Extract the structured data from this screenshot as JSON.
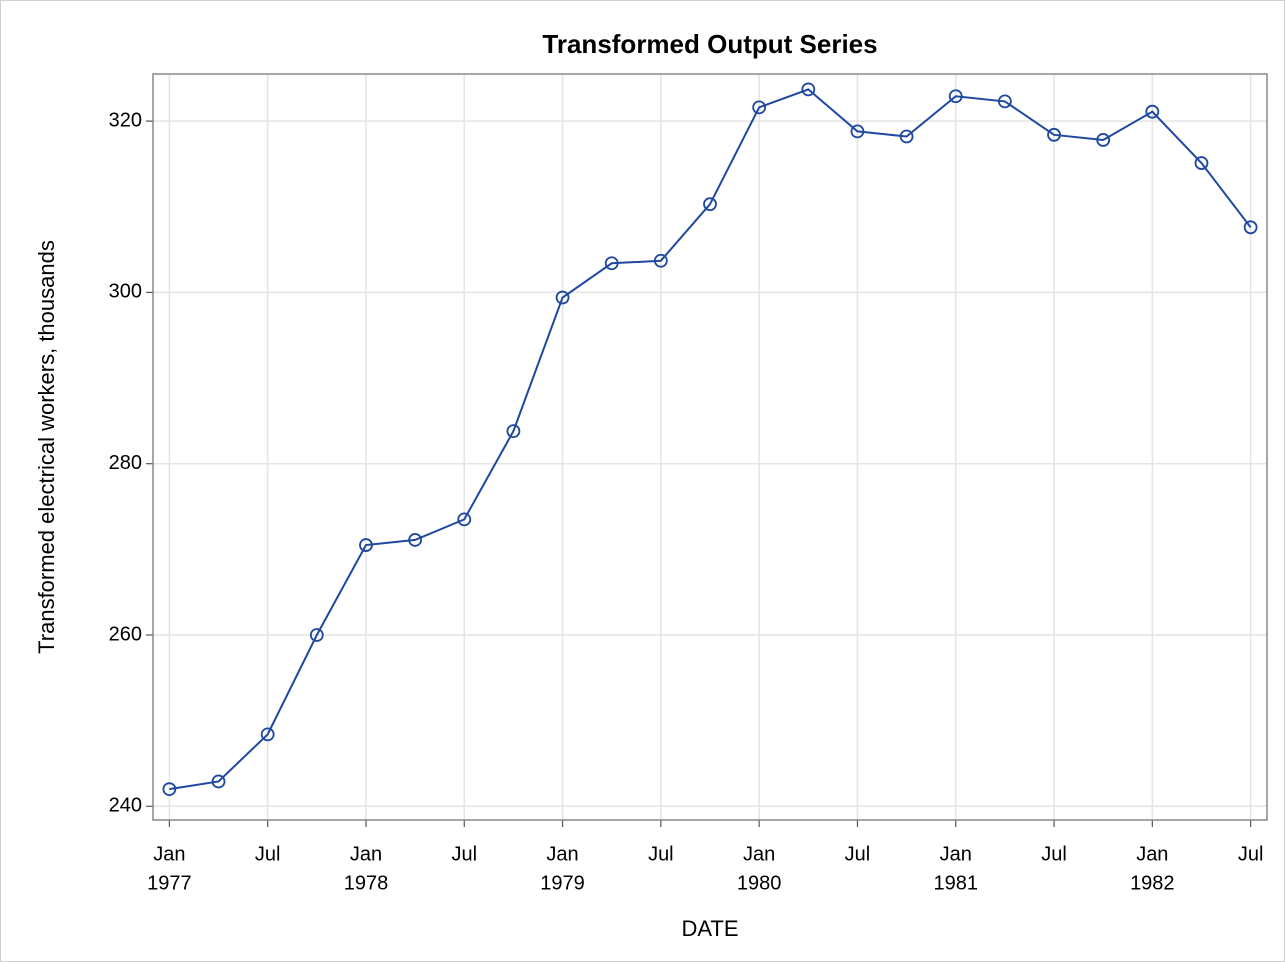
{
  "chart_data": {
    "type": "line",
    "title": "Transformed Output Series",
    "x_label": "DATE",
    "y_label": "Transformed electrical workers, thousands",
    "x": [
      "1977-01",
      "1977-04",
      "1977-07",
      "1977-10",
      "1978-01",
      "1978-04",
      "1978-07",
      "1978-10",
      "1979-01",
      "1979-04",
      "1979-07",
      "1979-10",
      "1980-01",
      "1980-04",
      "1980-07",
      "1980-10",
      "1981-01",
      "1981-04",
      "1981-07",
      "1981-10",
      "1982-01",
      "1982-04",
      "1982-07"
    ],
    "series": [
      {
        "color": "#1f48a0",
        "values": [
          242.0,
          242.9,
          248.4,
          260.0,
          270.5,
          271.1,
          273.5,
          283.8,
          299.4,
          303.4,
          303.7,
          310.3,
          321.6,
          323.7,
          318.8,
          318.2,
          322.9,
          322.3,
          318.4,
          317.8,
          321.1,
          315.1,
          307.6
        ]
      }
    ],
    "xlim": [
      "1976-12",
      "1982-08"
    ],
    "xticks": [
      {
        "value": "1977-01",
        "label": [
          "Jan",
          "1977"
        ]
      },
      {
        "value": "1977-07",
        "label": [
          "Jul"
        ]
      },
      {
        "value": "1978-01",
        "label": [
          "Jan",
          "1978"
        ]
      },
      {
        "value": "1978-07",
        "label": [
          "Jul"
        ]
      },
      {
        "value": "1979-01",
        "label": [
          "Jan",
          "1979"
        ]
      },
      {
        "value": "1979-07",
        "label": [
          "Jul"
        ]
      },
      {
        "value": "1980-01",
        "label": [
          "Jan",
          "1980"
        ]
      },
      {
        "value": "1980-07",
        "label": [
          "Jul"
        ]
      },
      {
        "value": "1981-01",
        "label": [
          "Jan",
          "1981"
        ]
      },
      {
        "value": "1981-07",
        "label": [
          "Jul"
        ]
      },
      {
        "value": "1982-01",
        "label": [
          "Jan",
          "1982"
        ]
      },
      {
        "value": "1982-07",
        "label": [
          "Jul"
        ]
      }
    ],
    "ylim": [
      238.4,
      325.5
    ],
    "yticks": [
      240,
      260,
      280,
      300,
      320
    ],
    "grid": true
  }
}
